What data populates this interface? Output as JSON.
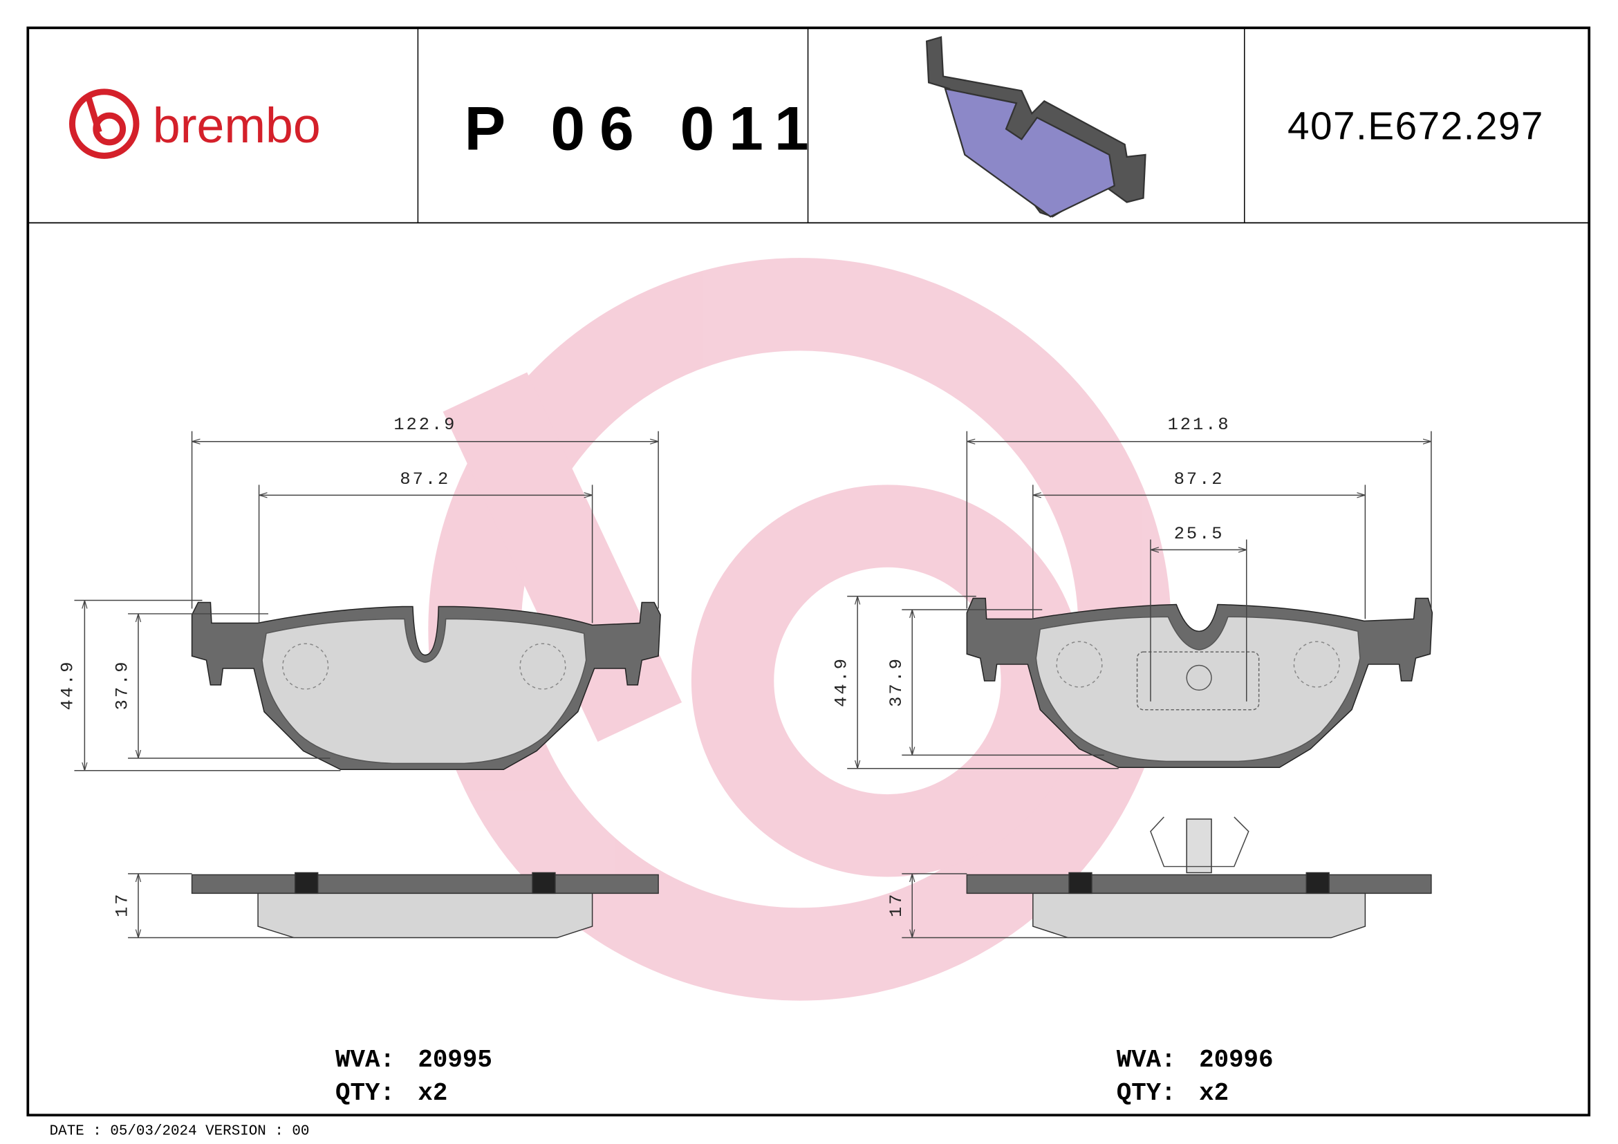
{
  "header": {
    "brand": "brembo",
    "part_number": "P 06 011",
    "code": "407.E672.297"
  },
  "left_pad": {
    "width_total": "122.9",
    "width_inner": "87.2",
    "height_total": "44.9",
    "height_inner": "37.9",
    "thickness": "17",
    "wva_label": "WVA:",
    "wva": "20995",
    "qty_label": "QTY:",
    "qty": "x2"
  },
  "right_pad": {
    "width_total": "121.8",
    "width_inner": "87.2",
    "sensor_width": "25.5",
    "height_total": "44.9",
    "height_inner": "37.9",
    "thickness": "17",
    "wva_label": "WVA:",
    "wva": "20996",
    "qty_label": "QTY:",
    "qty": "x2"
  },
  "footer": {
    "date_version": "DATE : 05/03/2024 VERSION : 00"
  }
}
